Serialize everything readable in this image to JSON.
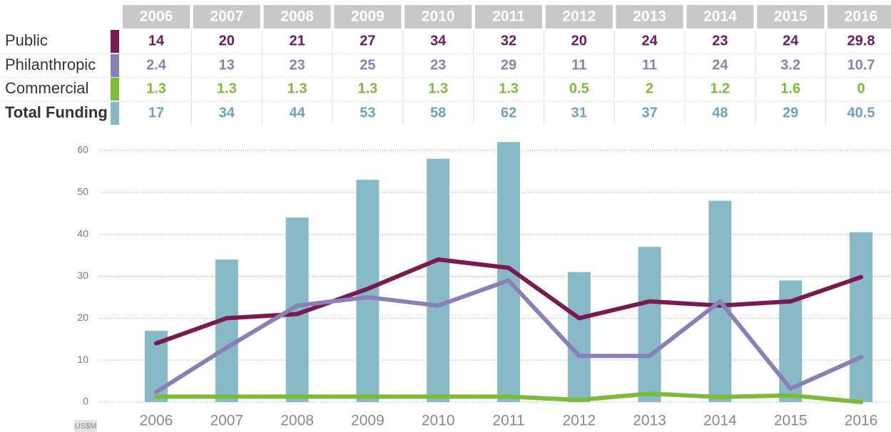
{
  "chart_data": {
    "type": "combo",
    "categories": [
      "2006",
      "2007",
      "2008",
      "2009",
      "2010",
      "2011",
      "2012",
      "2013",
      "2014",
      "2015",
      "2016"
    ],
    "series": [
      {
        "name": "Public",
        "type": "line",
        "color": "#7a1a4e",
        "text_color": "#6e1a5e",
        "values": [
          14,
          20,
          21,
          27,
          34,
          32,
          20,
          24,
          23,
          24,
          29.8
        ]
      },
      {
        "name": "Philanthropic",
        "type": "line",
        "color": "#8a80b8",
        "text_color": "#8a80b8",
        "values": [
          2.4,
          13,
          23,
          25,
          23,
          29,
          11,
          11,
          24,
          3.2,
          10.7
        ]
      },
      {
        "name": "Commercial",
        "type": "line",
        "color": "#7cba3a",
        "text_color": "#7cba3a",
        "values": [
          1.3,
          1.3,
          1.3,
          1.3,
          1.3,
          1.3,
          0.5,
          2,
          1.2,
          1.6,
          0
        ]
      },
      {
        "name": "Total Funding",
        "type": "bar",
        "color": "#88b9c7",
        "text_color": "#6aa4b6",
        "values": [
          17,
          34,
          44,
          53,
          58,
          62,
          31,
          37,
          48,
          29,
          40.5
        ]
      }
    ],
    "ylim": [
      0,
      60
    ],
    "yticks": [
      0,
      10,
      20,
      30,
      40,
      50,
      60
    ],
    "y_label": "US$M",
    "grid": true
  }
}
